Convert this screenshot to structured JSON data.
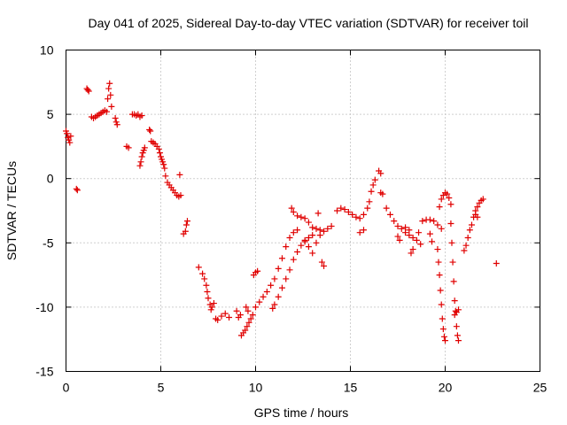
{
  "chart_data": {
    "type": "scatter",
    "title": "Day 041 of 2025, Sidereal Day-to-day VTEC variation (SDTVAR) for receiver toil",
    "xlabel": "GPS time / hours",
    "ylabel": "SDTVAR / TECUs",
    "xlim": [
      0,
      25
    ],
    "ylim": [
      -15,
      10
    ],
    "xticks": [
      0,
      5,
      10,
      15,
      20,
      25
    ],
    "yticks": [
      -15,
      -10,
      -5,
      0,
      5,
      10
    ],
    "xtick_labels": [
      "0",
      "5",
      "10",
      "15",
      "20",
      "25"
    ],
    "ytick_labels": [
      "-15",
      "-10",
      "-5",
      "0",
      "5",
      "10"
    ],
    "grid": true,
    "marker": "plus",
    "color": "#e00000",
    "series": [
      {
        "name": "SDTVAR",
        "points": [
          [
            0.0,
            3.7
          ],
          [
            0.05,
            3.5
          ],
          [
            0.1,
            3.2
          ],
          [
            0.15,
            3.0
          ],
          [
            0.2,
            2.8
          ],
          [
            0.25,
            3.3
          ],
          [
            0.55,
            -0.8
          ],
          [
            0.6,
            -0.9
          ],
          [
            1.1,
            7.0
          ],
          [
            1.15,
            6.9
          ],
          [
            1.2,
            6.8
          ],
          [
            1.35,
            4.8
          ],
          [
            1.45,
            4.7
          ],
          [
            1.55,
            4.8
          ],
          [
            1.65,
            4.9
          ],
          [
            1.75,
            5.0
          ],
          [
            1.85,
            5.1
          ],
          [
            1.95,
            5.2
          ],
          [
            2.05,
            5.3
          ],
          [
            2.15,
            5.2
          ],
          [
            2.2,
            6.2
          ],
          [
            2.25,
            7.0
          ],
          [
            2.3,
            7.4
          ],
          [
            2.35,
            6.5
          ],
          [
            2.4,
            5.6
          ],
          [
            2.6,
            4.7
          ],
          [
            2.65,
            4.4
          ],
          [
            2.7,
            4.2
          ],
          [
            3.2,
            2.5
          ],
          [
            3.3,
            2.4
          ],
          [
            3.5,
            5.0
          ],
          [
            3.6,
            5.0
          ],
          [
            3.7,
            4.9
          ],
          [
            3.8,
            5.0
          ],
          [
            3.9,
            4.8
          ],
          [
            4.0,
            4.9
          ],
          [
            3.9,
            1.0
          ],
          [
            3.95,
            1.3
          ],
          [
            4.0,
            1.7
          ],
          [
            4.05,
            2.0
          ],
          [
            4.1,
            2.2
          ],
          [
            4.15,
            2.4
          ],
          [
            4.4,
            3.8
          ],
          [
            4.45,
            3.7
          ],
          [
            4.5,
            2.9
          ],
          [
            4.6,
            2.8
          ],
          [
            4.7,
            2.7
          ],
          [
            4.8,
            2.5
          ],
          [
            4.9,
            2.3
          ],
          [
            4.95,
            2.0
          ],
          [
            5.0,
            1.7
          ],
          [
            5.05,
            1.5
          ],
          [
            5.1,
            1.3
          ],
          [
            5.15,
            1.1
          ],
          [
            5.2,
            0.8
          ],
          [
            5.25,
            0.2
          ],
          [
            5.35,
            -0.3
          ],
          [
            5.45,
            -0.5
          ],
          [
            5.55,
            -0.7
          ],
          [
            5.65,
            -0.9
          ],
          [
            5.75,
            -1.1
          ],
          [
            5.85,
            -1.3
          ],
          [
            5.95,
            -1.4
          ],
          [
            6.05,
            -1.3
          ],
          [
            6.0,
            0.3
          ],
          [
            6.2,
            -4.3
          ],
          [
            6.3,
            -4.1
          ],
          [
            6.35,
            -3.6
          ],
          [
            6.4,
            -3.3
          ],
          [
            7.0,
            -6.9
          ],
          [
            7.2,
            -7.4
          ],
          [
            7.3,
            -7.8
          ],
          [
            7.4,
            -8.3
          ],
          [
            7.45,
            -8.8
          ],
          [
            7.5,
            -9.3
          ],
          [
            7.6,
            -9.8
          ],
          [
            7.65,
            -10.2
          ],
          [
            7.7,
            -10.0
          ],
          [
            7.8,
            -9.7
          ],
          [
            7.9,
            -10.9
          ],
          [
            8.0,
            -11.0
          ],
          [
            8.2,
            -10.7
          ],
          [
            8.4,
            -10.5
          ],
          [
            8.6,
            -10.8
          ],
          [
            9.0,
            -10.3
          ],
          [
            9.1,
            -10.8
          ],
          [
            9.2,
            -10.6
          ],
          [
            9.25,
            -12.2
          ],
          [
            9.35,
            -12.0
          ],
          [
            9.45,
            -11.8
          ],
          [
            9.55,
            -11.5
          ],
          [
            9.65,
            -11.2
          ],
          [
            9.75,
            -10.9
          ],
          [
            9.85,
            -10.6
          ],
          [
            9.5,
            -10.0
          ],
          [
            9.6,
            -10.3
          ],
          [
            9.9,
            -7.5
          ],
          [
            10.0,
            -7.3
          ],
          [
            10.1,
            -7.2
          ],
          [
            10.0,
            -10.0
          ],
          [
            10.2,
            -9.6
          ],
          [
            10.4,
            -9.2
          ],
          [
            10.6,
            -8.8
          ],
          [
            10.8,
            -8.3
          ],
          [
            11.0,
            -7.8
          ],
          [
            11.2,
            -7.0
          ],
          [
            11.4,
            -6.2
          ],
          [
            11.6,
            -5.3
          ],
          [
            11.8,
            -4.6
          ],
          [
            12.0,
            -4.2
          ],
          [
            12.2,
            -4.0
          ],
          [
            10.9,
            -10.1
          ],
          [
            11.0,
            -9.8
          ],
          [
            11.2,
            -9.2
          ],
          [
            11.4,
            -8.5
          ],
          [
            11.6,
            -7.8
          ],
          [
            11.8,
            -7.1
          ],
          [
            12.0,
            -6.3
          ],
          [
            12.2,
            -5.7
          ],
          [
            12.4,
            -5.2
          ],
          [
            12.6,
            -4.9
          ],
          [
            12.8,
            -4.6
          ],
          [
            13.0,
            -4.4
          ],
          [
            11.9,
            -2.3
          ],
          [
            12.0,
            -2.6
          ],
          [
            12.2,
            -2.9
          ],
          [
            12.4,
            -3.0
          ],
          [
            12.6,
            -3.1
          ],
          [
            12.8,
            -3.4
          ],
          [
            13.0,
            -3.8
          ],
          [
            13.2,
            -3.9
          ],
          [
            13.4,
            -4.0
          ],
          [
            13.6,
            -4.1
          ],
          [
            13.8,
            -3.9
          ],
          [
            14.0,
            -3.7
          ],
          [
            12.6,
            -4.8
          ],
          [
            12.8,
            -5.3
          ],
          [
            13.0,
            -5.8
          ],
          [
            13.2,
            -5.0
          ],
          [
            13.4,
            -4.4
          ],
          [
            13.3,
            -2.7
          ],
          [
            13.5,
            -6.5
          ],
          [
            13.6,
            -6.8
          ],
          [
            14.3,
            -2.5
          ],
          [
            14.5,
            -2.3
          ],
          [
            14.7,
            -2.4
          ],
          [
            14.9,
            -2.6
          ],
          [
            15.1,
            -2.8
          ],
          [
            15.3,
            -3.0
          ],
          [
            15.5,
            -3.1
          ],
          [
            15.7,
            -2.8
          ],
          [
            15.9,
            -2.3
          ],
          [
            16.0,
            -1.8
          ],
          [
            16.1,
            -1.0
          ],
          [
            16.2,
            -0.5
          ],
          [
            16.3,
            -0.1
          ],
          [
            15.5,
            -4.2
          ],
          [
            15.7,
            -4.0
          ],
          [
            16.5,
            0.6
          ],
          [
            16.6,
            0.4
          ],
          [
            16.6,
            -1.1
          ],
          [
            16.7,
            -1.2
          ],
          [
            16.9,
            -2.3
          ],
          [
            17.1,
            -2.8
          ],
          [
            17.3,
            -3.3
          ],
          [
            17.5,
            -3.7
          ],
          [
            17.7,
            -3.9
          ],
          [
            17.9,
            -4.2
          ],
          [
            18.1,
            -4.4
          ],
          [
            18.3,
            -4.6
          ],
          [
            18.5,
            -4.8
          ],
          [
            18.7,
            -5.1
          ],
          [
            17.5,
            -4.5
          ],
          [
            17.6,
            -4.8
          ],
          [
            17.9,
            -3.8
          ],
          [
            18.1,
            -4.0
          ],
          [
            18.2,
            -5.8
          ],
          [
            18.3,
            -5.5
          ],
          [
            18.6,
            -4.2
          ],
          [
            18.8,
            -3.3
          ],
          [
            19.0,
            -3.2
          ],
          [
            19.2,
            -3.2
          ],
          [
            19.4,
            -3.3
          ],
          [
            19.6,
            -3.6
          ],
          [
            19.8,
            -3.9
          ],
          [
            19.2,
            -4.3
          ],
          [
            19.3,
            -4.9
          ],
          [
            19.6,
            -5.5
          ],
          [
            19.65,
            -6.5
          ],
          [
            19.7,
            -7.5
          ],
          [
            19.75,
            -8.7
          ],
          [
            19.8,
            -9.8
          ],
          [
            19.85,
            -10.9
          ],
          [
            19.9,
            -11.7
          ],
          [
            19.95,
            -12.3
          ],
          [
            20.0,
            -12.6
          ],
          [
            19.7,
            -2.2
          ],
          [
            19.8,
            -1.6
          ],
          [
            19.9,
            -1.3
          ],
          [
            20.0,
            -1.1
          ],
          [
            20.1,
            -1.2
          ],
          [
            20.2,
            -1.5
          ],
          [
            20.3,
            -2.0
          ],
          [
            20.3,
            -3.5
          ],
          [
            20.35,
            -5.0
          ],
          [
            20.4,
            -6.5
          ],
          [
            20.45,
            -8.0
          ],
          [
            20.5,
            -9.5
          ],
          [
            20.55,
            -10.3
          ],
          [
            20.6,
            -11.5
          ],
          [
            20.65,
            -12.2
          ],
          [
            20.7,
            -12.6
          ],
          [
            20.5,
            -10.6
          ],
          [
            20.6,
            -10.4
          ],
          [
            20.7,
            -10.2
          ],
          [
            21.0,
            -5.6
          ],
          [
            21.1,
            -5.2
          ],
          [
            21.2,
            -4.6
          ],
          [
            21.3,
            -4.0
          ],
          [
            21.4,
            -3.6
          ],
          [
            21.5,
            -3.0
          ],
          [
            21.6,
            -2.5
          ],
          [
            21.7,
            -2.2
          ],
          [
            21.8,
            -1.9
          ],
          [
            21.9,
            -1.7
          ],
          [
            22.0,
            -1.6
          ],
          [
            21.6,
            -2.8
          ],
          [
            21.7,
            -3.0
          ],
          [
            22.7,
            -6.6
          ]
        ]
      }
    ]
  }
}
